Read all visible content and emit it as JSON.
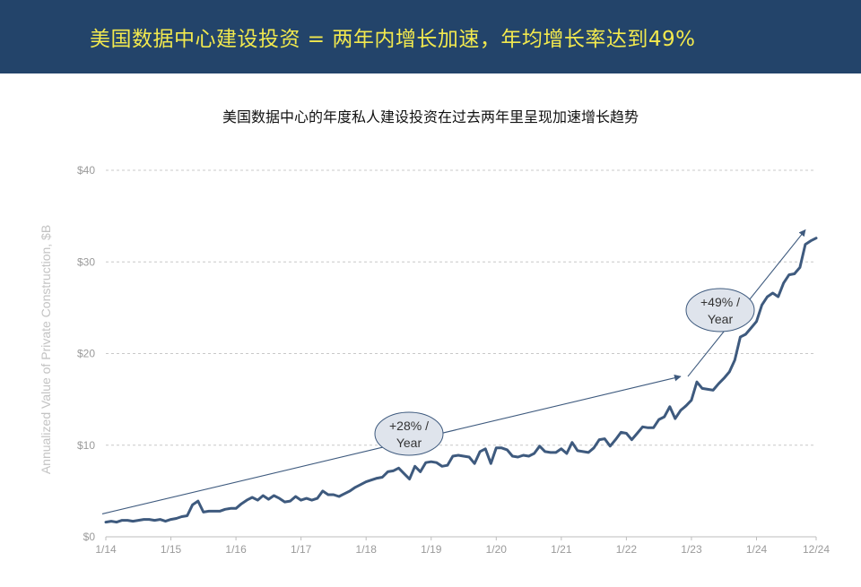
{
  "header": {
    "title": "美国数据中心建设投资 = 两年内增长加速，年均增长率达到49%"
  },
  "colors": {
    "banner": "#23446a",
    "banner_text": "#f2e94e",
    "line": "#3e5a7e",
    "bubble_fill": "#dfe4ec"
  },
  "chart_data": {
    "type": "line",
    "title": "美国数据中心的年度私人建设投资在过去两年里呈现加速增长趋势",
    "xlabel": "",
    "ylabel": "Annualized Value of Private Construction, $B",
    "ylim": [
      0,
      40
    ],
    "y_ticks": [
      0,
      10,
      20,
      30,
      40
    ],
    "y_tick_labels": [
      "$0",
      "$10",
      "$20",
      "$30",
      "$40"
    ],
    "x_tick_labels": [
      "1/14",
      "1/15",
      "1/16",
      "1/17",
      "1/18",
      "1/19",
      "1/20",
      "1/21",
      "1/22",
      "1/23",
      "1/24",
      "12/24"
    ],
    "grid": true,
    "series": [
      {
        "name": "",
        "x_start": "2014-01",
        "values": [
          1.6,
          1.7,
          1.6,
          1.8,
          1.8,
          1.7,
          1.8,
          1.9,
          1.9,
          1.8,
          1.9,
          1.7,
          1.9,
          2.0,
          2.2,
          2.3,
          3.5,
          3.9,
          2.7,
          2.8,
          2.8,
          2.8,
          3.0,
          3.1,
          3.1,
          3.6,
          4.0,
          4.3,
          4.0,
          4.5,
          4.1,
          4.5,
          4.2,
          3.8,
          3.9,
          4.4,
          4.0,
          4.2,
          4.0,
          4.2,
          5.0,
          4.6,
          4.6,
          4.4,
          4.7,
          5.0,
          5.4,
          5.7,
          6.0,
          6.2,
          6.4,
          6.5,
          7.1,
          7.2,
          7.5,
          6.9,
          6.3,
          7.7,
          7.1,
          8.1,
          8.2,
          8.1,
          7.7,
          7.8,
          8.8,
          8.9,
          8.8,
          8.7,
          8.0,
          9.3,
          9.6,
          8.0,
          9.7,
          9.7,
          9.5,
          8.8,
          8.7,
          8.9,
          8.8,
          9.1,
          9.9,
          9.3,
          9.2,
          9.2,
          9.6,
          9.1,
          10.3,
          9.4,
          9.3,
          9.2,
          9.7,
          10.6,
          10.7,
          9.9,
          10.6,
          11.4,
          11.3,
          10.6,
          11.3,
          12.0,
          11.9,
          11.9,
          12.8,
          13.1,
          14.2,
          12.9,
          13.8,
          14.3,
          14.9,
          16.9,
          16.2,
          16.1,
          16.0,
          16.7,
          17.3,
          18.0,
          19.3,
          21.8,
          22.1,
          22.8,
          23.5,
          25.3,
          26.2,
          26.6,
          26.2,
          27.7,
          28.6,
          28.7,
          29.4,
          31.9,
          32.3,
          32.6
        ]
      }
    ],
    "annotations": [
      {
        "text_line1": "+28% /",
        "text_line2": "Year",
        "from": [
          "2014-01",
          2.5
        ],
        "to": [
          "2023-01",
          17.5
        ]
      },
      {
        "text_line1": "+49% /",
        "text_line2": "Year",
        "from": [
          "2023-01",
          17.5
        ],
        "to": [
          "2024-12",
          33.5
        ]
      }
    ]
  }
}
